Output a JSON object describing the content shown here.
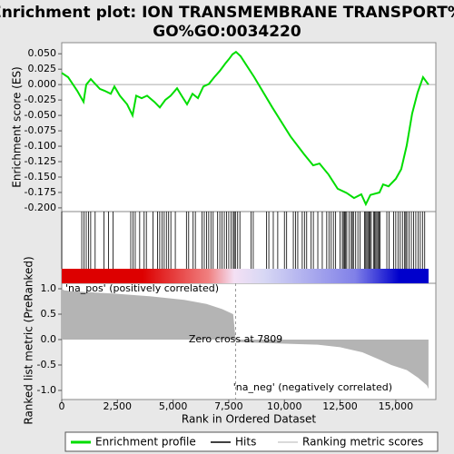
{
  "chart_data": [
    {
      "type": "line",
      "title": [
        "Enrichment plot: ION TRANSMEMBRANE TRANSPORT%",
        "GO%GO:0034220"
      ],
      "ylabel": "Enrichment score (ES)",
      "name": "Enrichment profile",
      "color": "#00dd00",
      "xlim": [
        0,
        16800
      ],
      "ylim": [
        -0.206,
        0.068
      ],
      "yticks": [
        {
          "value": 0.05,
          "label": "0.050"
        },
        {
          "value": 0.025,
          "label": "0.025"
        },
        {
          "value": 0,
          "label": "0.000"
        },
        {
          "value": -0.025,
          "label": "-0.025"
        },
        {
          "value": -0.05,
          "label": "-0.050"
        },
        {
          "value": -0.075,
          "label": "-0.075"
        },
        {
          "value": -0.1,
          "label": "-0.100"
        },
        {
          "value": -0.125,
          "label": "-0.125"
        },
        {
          "value": -0.15,
          "label": "-0.150"
        },
        {
          "value": -0.175,
          "label": "-0.175"
        },
        {
          "value": -0.2,
          "label": "-0.200"
        }
      ],
      "x": [
        0,
        285,
        693,
        978,
        1100,
        1305,
        1427,
        1712,
        1916,
        2200,
        2364,
        2610,
        2935,
        3180,
        3343,
        3587,
        3832,
        4158,
        4403,
        4647,
        4892,
        5177,
        5381,
        5626,
        5870,
        6115,
        6360,
        6604,
        6849,
        7094,
        7338,
        7501,
        7664,
        7827,
        8031,
        8643,
        9458,
        10273,
        10885,
        11292,
        11578,
        11985,
        12393,
        12801,
        13127,
        13453,
        13657,
        13861,
        14269,
        14432,
        14676,
        15002,
        15247,
        15492,
        15736,
        15981,
        16226,
        16470
      ],
      "values": [
        0.019,
        0.012,
        -0.01,
        -0.028,
        0.0,
        0.009,
        0.004,
        -0.007,
        -0.01,
        -0.015,
        -0.003,
        -0.018,
        -0.032,
        -0.05,
        -0.018,
        -0.022,
        -0.018,
        -0.028,
        -0.037,
        -0.025,
        -0.018,
        -0.006,
        -0.018,
        -0.032,
        -0.015,
        -0.022,
        -0.003,
        0.001,
        0.012,
        0.022,
        0.034,
        0.041,
        0.049,
        0.053,
        0.046,
        0.012,
        -0.037,
        -0.084,
        -0.113,
        -0.131,
        -0.128,
        -0.146,
        -0.169,
        -0.176,
        -0.184,
        -0.178,
        -0.194,
        -0.179,
        -0.175,
        -0.162,
        -0.165,
        -0.153,
        -0.137,
        -0.099,
        -0.047,
        -0.013,
        0.012,
        0.0
      ]
    },
    {
      "type": "rug",
      "name": "Hits",
      "color": "#000000",
      "xlim": [
        0,
        16800
      ],
      "x": [
        0,
        900,
        1000,
        1100,
        1200,
        1300,
        1500,
        1900,
        2100,
        2300,
        3100,
        3200,
        3300,
        3500,
        3700,
        3800,
        4100,
        4300,
        4400,
        4500,
        4600,
        4700,
        4800,
        4900,
        5100,
        5600,
        5700,
        5900,
        6000,
        6300,
        6400,
        6500,
        6600,
        6700,
        6800,
        7000,
        7100,
        7200,
        7300,
        7400,
        7500,
        7600,
        7700,
        7750,
        7800,
        7900,
        8000,
        8500,
        8600,
        9200,
        9300,
        9500,
        9700,
        10000,
        10100,
        10400,
        10500,
        10600,
        10800,
        10900,
        11000,
        11200,
        11300,
        11500,
        11700,
        11900,
        12000,
        12100,
        12200,
        12300,
        12500,
        12600,
        12650,
        12700,
        12750,
        12800,
        12900,
        13000,
        13050,
        13100,
        13200,
        13300,
        13400,
        13600,
        13650,
        13700,
        13750,
        13800,
        13850,
        13900,
        14000,
        14050,
        14100,
        14150,
        14200,
        14250,
        14300,
        14600,
        14700,
        14900,
        15000,
        15100,
        15200,
        15300,
        15400,
        15450,
        15500,
        15600,
        15700,
        15800,
        15900,
        16000,
        16100,
        16200,
        16300
      ]
    },
    {
      "type": "area",
      "name": "Ranking metric scores",
      "color": "#b4b4b4",
      "ylabel": "Ranked list metric (PreRanked)",
      "xlabel": "Rank in Ordered Dataset",
      "xlim": [
        0,
        16800
      ],
      "ylim": [
        -1.179,
        1.107
      ],
      "xticks": [
        0,
        {
          "value": 2500,
          "label": "2,500"
        },
        {
          "value": 5000,
          "label": "5,000"
        },
        {
          "value": 7500,
          "label": "7,500"
        },
        {
          "value": 10000,
          "label": "10,000"
        },
        {
          "value": 12500,
          "label": "12,500"
        },
        {
          "value": 15000,
          "label": "15,000"
        }
      ],
      "yticks": [
        {
          "value": 1,
          "label": "1.0"
        },
        {
          "value": 0.5,
          "label": "0.5"
        },
        {
          "value": 0,
          "label": "0.0"
        },
        {
          "value": -0.5,
          "label": "-0.5"
        },
        {
          "value": -1,
          "label": "-1.0"
        }
      ],
      "x": [
        0,
        100,
        500,
        2500,
        4000,
        5500,
        6500,
        7200,
        7700,
        7809,
        8000,
        10000,
        11500,
        12500,
        13500,
        14300,
        14800,
        15500,
        16000,
        16400,
        16470
      ],
      "values": [
        1.0,
        0.97,
        0.95,
        0.9,
        0.85,
        0.78,
        0.7,
        0.6,
        0.5,
        0.0,
        -0.05,
        -0.08,
        -0.1,
        -0.15,
        -0.25,
        -0.4,
        -0.5,
        -0.6,
        -0.75,
        -0.9,
        -0.97
      ],
      "zero_cross": 7809,
      "annotations": [
        "'na_pos' (positively correlated)",
        "Zero cross at 7809",
        "'na_neg' (negatively correlated)"
      ],
      "annotation_colors": [
        "#cc0000",
        "#000000",
        "#0000cc"
      ]
    }
  ]
}
